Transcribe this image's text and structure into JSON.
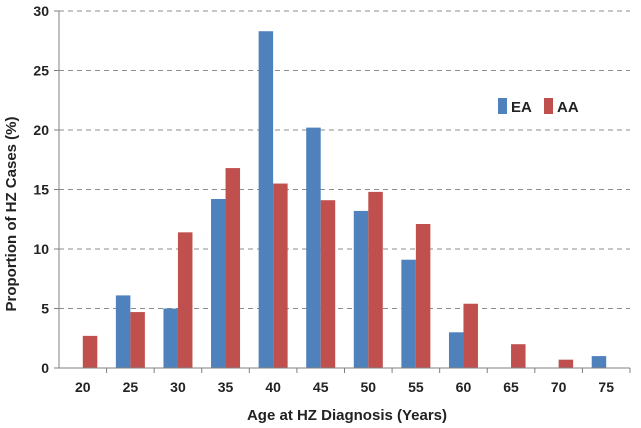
{
  "chart_data": {
    "type": "bar",
    "title": "",
    "xlabel": "Age at HZ Diagnosis (Years)",
    "ylabel": "Proportion of HZ Cases  (%)",
    "categories": [
      "20",
      "25",
      "30",
      "35",
      "40",
      "45",
      "50",
      "55",
      "60",
      "65",
      "70",
      "75"
    ],
    "series": [
      {
        "name": "EA",
        "color": "#4f81bd",
        "values": [
          0,
          6.1,
          5.0,
          14.2,
          28.3,
          20.2,
          13.2,
          9.1,
          3.0,
          0,
          0,
          1.0
        ]
      },
      {
        "name": "AA",
        "color": "#c0504d",
        "values": [
          2.7,
          4.7,
          11.4,
          16.8,
          15.5,
          14.1,
          14.8,
          12.1,
          5.4,
          2.0,
          0.7,
          0
        ]
      }
    ],
    "ylim": [
      0,
      30
    ],
    "yticks": [
      "0",
      "5",
      "10",
      "15",
      "20",
      "25",
      "30"
    ],
    "grid": true,
    "legend_position": "top-right"
  }
}
